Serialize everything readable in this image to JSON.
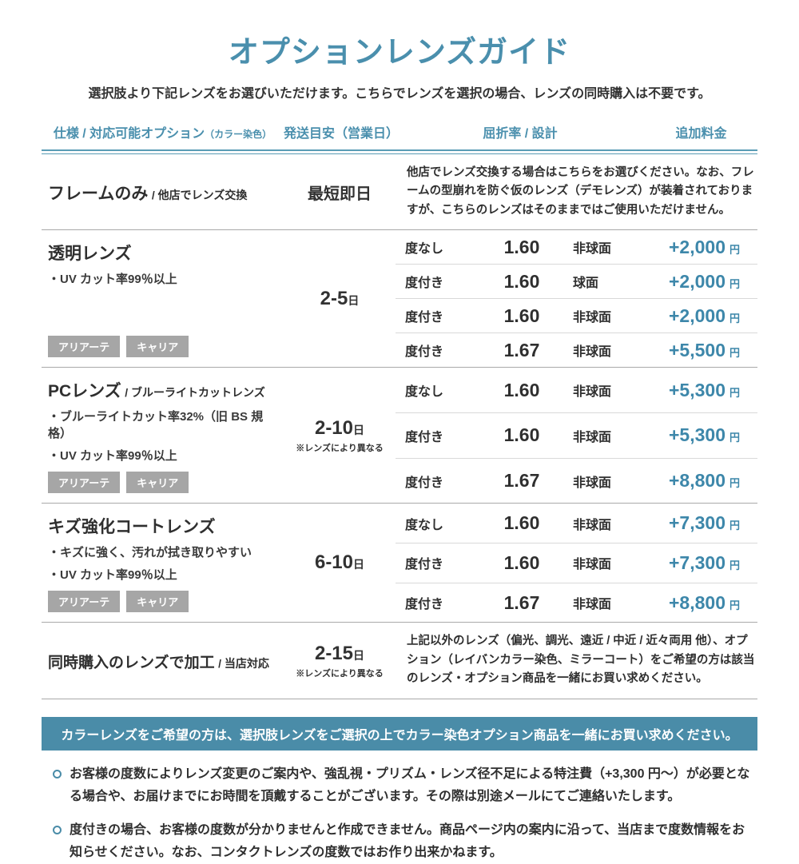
{
  "page": {
    "title": "オプションレンズガイド",
    "subtitle": "選択肢より下記レンズをお選びいただけます。こちらでレンズを選択の場合、レンズの同時購入は不要です。"
  },
  "colors": {
    "accent_blue": "#4a8fad",
    "price_blue": "#3d87aa",
    "banner_bg": "#4a8ca8",
    "badge_gray": "#a6a6a6"
  },
  "table": {
    "headers": {
      "spec": "仕様 / 対応可能オプション",
      "spec_note": "（カラー染色）",
      "shipping": "発送目安（営業日）",
      "index_design": "屈折率 / 設計",
      "price": "追加料金"
    },
    "sections": [
      {
        "name": "フレームのみ",
        "name_sub": "/ 他店でレンズ交換",
        "ship_main": "最短即日",
        "note": "他店でレンズ交換する場合はこちらをお選びください。なお、フレームの型崩れを防ぐ仮のレンズ（デモレンズ）が装着されておりますが、こちらのレンズはそのままではご使用いただけません。"
      },
      {
        "name": "透明レンズ",
        "features": [
          "・UV カット率99％以上"
        ],
        "tags": [
          "アリアーテ",
          "キャリア"
        ],
        "ship_main": "2-5",
        "ship_unit": "日",
        "rows": [
          {
            "power": "度なし",
            "index": "1.60",
            "design": "非球面",
            "price": "+2,000",
            "unit": "円"
          },
          {
            "power": "度付き",
            "index": "1.60",
            "design": "球面",
            "price": "+2,000",
            "unit": "円"
          },
          {
            "power": "度付き",
            "index": "1.60",
            "design": "非球面",
            "price": "+2,000",
            "unit": "円"
          },
          {
            "power": "度付き",
            "index": "1.67",
            "design": "非球面",
            "price": "+5,500",
            "unit": "円"
          }
        ]
      },
      {
        "name": "PCレンズ",
        "name_sub": "/ ブルーライトカットレンズ",
        "features": [
          "・ブルーライトカット率32%（旧 BS 規格）",
          "・UV カット率99％以上"
        ],
        "tags": [
          "アリアーテ",
          "キャリア"
        ],
        "ship_main": "2-10",
        "ship_unit": "日",
        "ship_note": "※レンズにより異なる",
        "rows": [
          {
            "power": "度なし",
            "index": "1.60",
            "design": "非球面",
            "price": "+5,300",
            "unit": "円"
          },
          {
            "power": "度付き",
            "index": "1.60",
            "design": "非球面",
            "price": "+5,300",
            "unit": "円"
          },
          {
            "power": "度付き",
            "index": "1.67",
            "design": "非球面",
            "price": "+8,800",
            "unit": "円"
          }
        ]
      },
      {
        "name": "キズ強化コートレンズ",
        "features": [
          "・キズに強く、汚れが拭き取りやすい",
          "・UV カット率99％以上"
        ],
        "tags": [
          "アリアーテ",
          "キャリア"
        ],
        "ship_main": "6-10",
        "ship_unit": "日",
        "rows": [
          {
            "power": "度なし",
            "index": "1.60",
            "design": "非球面",
            "price": "+7,300",
            "unit": "円"
          },
          {
            "power": "度付き",
            "index": "1.60",
            "design": "非球面",
            "price": "+7,300",
            "unit": "円"
          },
          {
            "power": "度付き",
            "index": "1.67",
            "design": "非球面",
            "price": "+8,800",
            "unit": "円"
          }
        ]
      },
      {
        "name": "同時購入のレンズで加工",
        "name_sub": "/ 当店対応",
        "ship_main": "2-15",
        "ship_unit": "日",
        "ship_note": "※レンズにより異なる",
        "note": "上記以外のレンズ（偏光、調光、遠近 / 中近 / 近々両用 他）、オプション（レイバンカラー染色、ミラーコート）をご希望の方は該当のレンズ・オプション商品を一緒にお買い求めください。"
      }
    ]
  },
  "banner": {
    "text": "カラーレンズをご希望の方は、選択肢レンズをご選択の上でカラー染色オプション商品を一緒にお買い求めください。"
  },
  "notes": [
    "お客様の度数によりレンズ変更のご案内や、強乱視・プリズム・レンズ径不足による特注費（+3,300 円〜）が必要となる場合や、お届けまでにお時間を頂戴することがございます。その際は別途メールにてご連絡いたします。",
    "度付きの場合、お客様の度数が分かりませんと作成できません。商品ページ内の案内に沿って、当店まで度数情報をお知らせください。なお、コンタクトレンズの度数ではお作り出来かねます。"
  ]
}
